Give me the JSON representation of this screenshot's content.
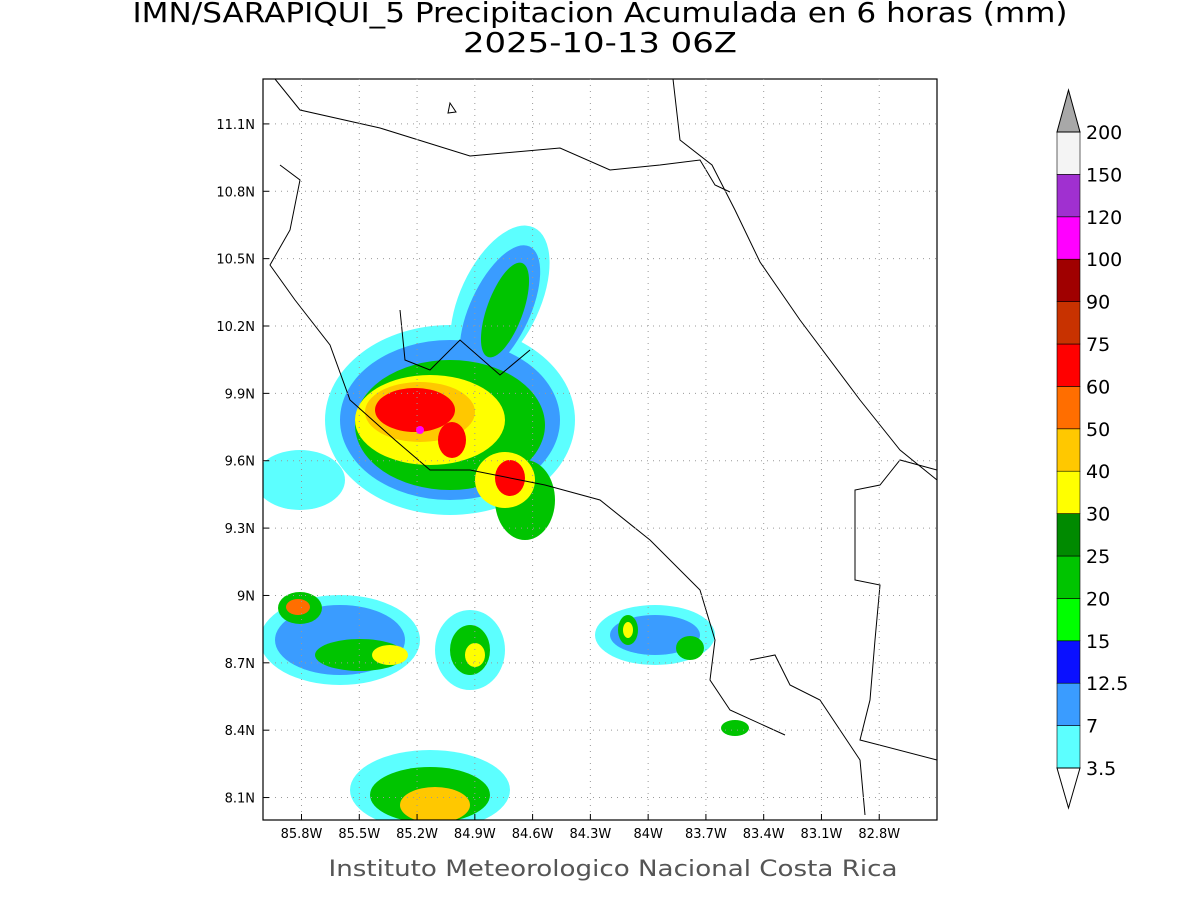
{
  "header": {
    "title": "IMN/SARAPIQUI_5 Precipitacion Acumulada en 6 horas (mm)",
    "subtitle": "2025-10-13 06Z"
  },
  "map": {
    "lon_range": [
      -86,
      -82.5
    ],
    "lat_range": [
      8,
      11.3
    ],
    "lon_ticks": [
      {
        "value": -85.8,
        "label": "85.8W"
      },
      {
        "value": -85.5,
        "label": "85.5W"
      },
      {
        "value": -85.2,
        "label": "85.2W"
      },
      {
        "value": -84.9,
        "label": "84.9W"
      },
      {
        "value": -84.6,
        "label": "84.6W"
      },
      {
        "value": -84.3,
        "label": "84.3W"
      },
      {
        "value": -84,
        "label": "84W"
      },
      {
        "value": -83.7,
        "label": "83.7W"
      },
      {
        "value": -83.4,
        "label": "83.4W"
      },
      {
        "value": -83.1,
        "label": "83.1W"
      },
      {
        "value": -82.8,
        "label": "82.8W"
      }
    ],
    "lat_ticks": [
      {
        "value": 8.1,
        "label": "8.1N"
      },
      {
        "value": 8.4,
        "label": "8.4N"
      },
      {
        "value": 8.7,
        "label": "8.7N"
      },
      {
        "value": 9,
        "label": "9N"
      },
      {
        "value": 9.3,
        "label": "9.3N"
      },
      {
        "value": 9.6,
        "label": "9.6N"
      },
      {
        "value": 9.9,
        "label": "9.9N"
      },
      {
        "value": 10.2,
        "label": "10.2N"
      },
      {
        "value": 10.5,
        "label": "10.5N"
      },
      {
        "value": 10.8,
        "label": "10.8N"
      },
      {
        "value": 11.1,
        "label": "11.1N"
      }
    ]
  },
  "colorbar": {
    "levels": [
      3.5,
      7,
      12.5,
      15,
      20,
      25,
      30,
      40,
      50,
      60,
      75,
      90,
      100,
      120,
      150,
      200
    ],
    "colors": [
      "#5cffff",
      "#3a9cff",
      "#0a10ff",
      "#00ff00",
      "#00c400",
      "#008a00",
      "#ffff00",
      "#ffc800",
      "#ff6e00",
      "#ff0000",
      "#c83200",
      "#a00000",
      "#ff00ff",
      "#a030d0",
      "#f4f4f4"
    ],
    "below_color": "#ffffff",
    "above_color": "#a8a8a8"
  },
  "footer": "Instituto Meteorologico Nacional Costa Rica"
}
